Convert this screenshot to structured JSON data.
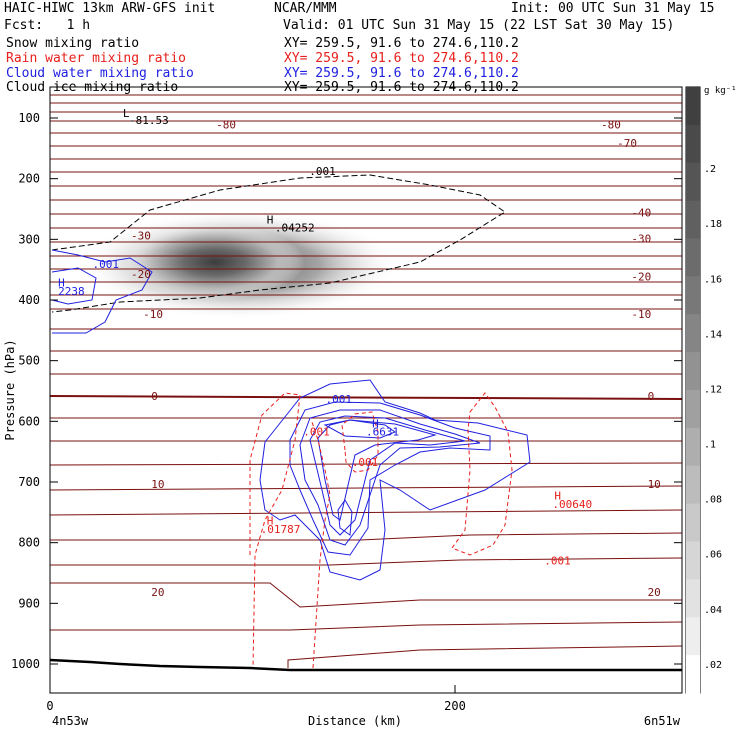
{
  "header": {
    "model": "HAIC-HIWC 13km ARW-GFS init",
    "center": "NCAR/MMM",
    "init": "Init: 00 UTC Sun 31 May 15",
    "fcst": "Fcst:   1 h",
    "valid": "Valid: 01 UTC Sun 31 May 15 (22 LST Sat 30 May 15)",
    "fields": [
      {
        "label": "Snow mixing ratio",
        "xy": "XY= 259.5, 91.6 to 274.6,110.2",
        "color": "#000000"
      },
      {
        "label": "Rain water mixing ratio",
        "xy": "XY= 259.5, 91.6 to 274.6,110.2",
        "color": "#e8201c"
      },
      {
        "label": "Cloud water mixing ratio",
        "xy": "XY= 259.5, 91.6 to 274.6,110.2",
        "color": "#2020e0"
      },
      {
        "label": "Cloud ice mixing ratio",
        "xy": "XY= 259.5, 91.6 to 274.6,110.2",
        "color": "#000000"
      }
    ]
  },
  "chart_data": {
    "type": "heatmap",
    "title": "Snow mixing ratio",
    "ylabel": "Pressure (hPa)",
    "xlabel": "Distance (km)",
    "y_ticks": [
      100,
      200,
      300,
      400,
      500,
      600,
      700,
      800,
      900,
      1000
    ],
    "x_ticks": [
      0,
      200
    ],
    "x_left_label": "4n53w",
    "x_right_label": "6n51w",
    "colorbar": {
      "unit": "g kg⁻¹",
      "ticks": [
        ".2",
        ".18",
        ".16",
        ".14",
        ".12",
        ".1",
        ".08",
        ".06",
        ".04",
        ".02"
      ],
      "colors": [
        "#404040",
        "#4a4a4a",
        "#555555",
        "#606060",
        "#6c6c6c",
        "#787878",
        "#858585",
        "#929292",
        "#a0a0a0",
        "#aeaeae",
        "#bcbcbc",
        "#c9c9c9",
        "#d6d6d6",
        "#e2e2e2",
        "#eeeeee",
        "#ffffff"
      ]
    },
    "temperature_labels": [
      {
        "value": "-80",
        "x": 82,
        "p": 117
      },
      {
        "value": "-80",
        "x": 272,
        "p": 117
      },
      {
        "value": "-70",
        "x": 280,
        "p": 148
      },
      {
        "value": "-40",
        "x": 287,
        "p": 262
      },
      {
        "value": "-30",
        "x": 40,
        "p": 300
      },
      {
        "value": "-30",
        "x": 287,
        "p": 305
      },
      {
        "value": "-20",
        "x": 40,
        "p": 364
      },
      {
        "value": "-20",
        "x": 287,
        "p": 368
      },
      {
        "value": "-10",
        "x": 46,
        "p": 430
      },
      {
        "value": "-10",
        "x": 287,
        "p": 430
      },
      {
        "value": "0",
        "x": 50,
        "p": 565
      },
      {
        "value": "0",
        "x": 295,
        "p": 565
      },
      {
        "value": "10",
        "x": 50,
        "p": 710
      },
      {
        "value": "10",
        "x": 295,
        "p": 710
      },
      {
        "value": "20",
        "x": 50,
        "p": 888
      },
      {
        "value": "20",
        "x": 295,
        "p": 888
      }
    ],
    "annotations": [
      {
        "text": "L",
        "x": 36,
        "p": 98,
        "color": "#000000"
      },
      {
        "text": "-81.53",
        "x": 39,
        "p": 110,
        "color": "#000000"
      },
      {
        "text": ".001",
        "x": 128,
        "p": 194,
        "color": "#000000"
      },
      {
        "text": "H",
        "x": 107,
        "p": 274,
        "color": "#000000"
      },
      {
        "text": ".04252",
        "x": 111,
        "p": 287,
        "color": "#000000"
      },
      {
        "text": ".001",
        "x": 21,
        "p": 347,
        "color": "#2020e0"
      },
      {
        "text": "H",
        "x": 4,
        "p": 378,
        "color": "#2020e0"
      },
      {
        "text": "2238",
        "x": 4,
        "p": 392,
        "color": "#2020e0"
      },
      {
        "text": ".001",
        "x": 136,
        "p": 570,
        "color": "#2020e0"
      },
      {
        "text": "H",
        "x": 159,
        "p": 610,
        "color": "#2020e0"
      },
      {
        "text": ".6631",
        "x": 156,
        "p": 623,
        "color": "#2020e0"
      },
      {
        "text": ".001",
        "x": 125,
        "p": 623,
        "color": "#e8201c"
      },
      {
        "text": ".001",
        "x": 149,
        "p": 674,
        "color": "#e8201c"
      },
      {
        "text": "H",
        "x": 107,
        "p": 770,
        "color": "#e8201c"
      },
      {
        "text": ".01787",
        "x": 104,
        "p": 784,
        "color": "#e8201c"
      },
      {
        "text": "H",
        "x": 249,
        "p": 729,
        "color": "#e8201c"
      },
      {
        "text": ".00640",
        "x": 248,
        "p": 743,
        "color": "#e8201c"
      },
      {
        "text": ".001",
        "x": 244,
        "p": 836,
        "color": "#e8201c"
      }
    ]
  }
}
